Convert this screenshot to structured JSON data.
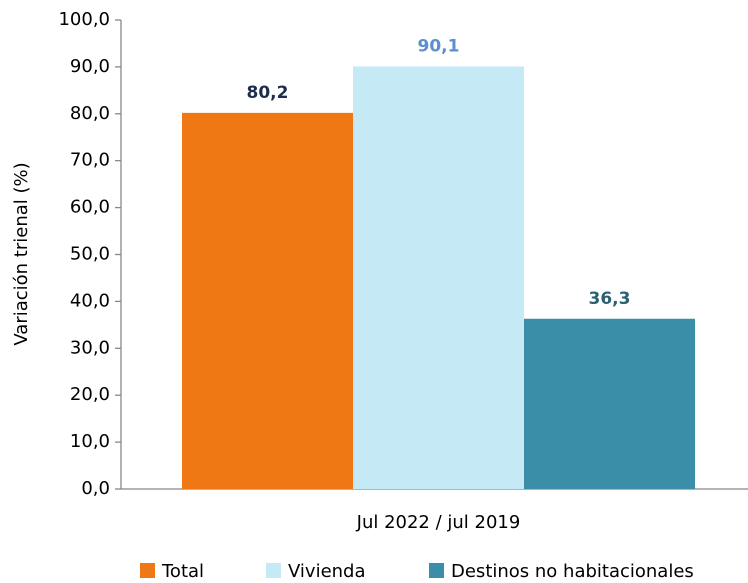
{
  "chart_data": {
    "type": "bar",
    "y_label": "Variación trienal (%)",
    "categories": [
      "Jul 2022 / jul 2019"
    ],
    "series": [
      {
        "name": "Total",
        "color": "#f07814",
        "label_color": "#1f2d4d",
        "values": [
          80.2
        ],
        "value_labels": [
          "80,2"
        ]
      },
      {
        "name": "Vivienda",
        "color": "#c6eaf5",
        "label_color": "#5b8fd1",
        "values": [
          90.1
        ],
        "value_labels": [
          "90,1"
        ]
      },
      {
        "name": "Destinos no habitacionales",
        "color": "#3a8ea8",
        "label_color": "#2b5f73",
        "values": [
          36.3
        ],
        "value_labels": [
          "36,3"
        ]
      }
    ],
    "ylim": [
      0,
      100
    ],
    "yticks": [
      {
        "value": 0,
        "label": "0,0"
      },
      {
        "value": 10,
        "label": "10,0"
      },
      {
        "value": 20,
        "label": "20,0"
      },
      {
        "value": 30,
        "label": "30,0"
      },
      {
        "value": 40,
        "label": "40,0"
      },
      {
        "value": 50,
        "label": "50,0"
      },
      {
        "value": 60,
        "label": "60,0"
      },
      {
        "value": 70,
        "label": "70,0"
      },
      {
        "value": 80,
        "label": "80,0"
      },
      {
        "value": 90,
        "label": "90,0"
      },
      {
        "value": 100,
        "label": "100,0"
      }
    ],
    "grid": false
  }
}
